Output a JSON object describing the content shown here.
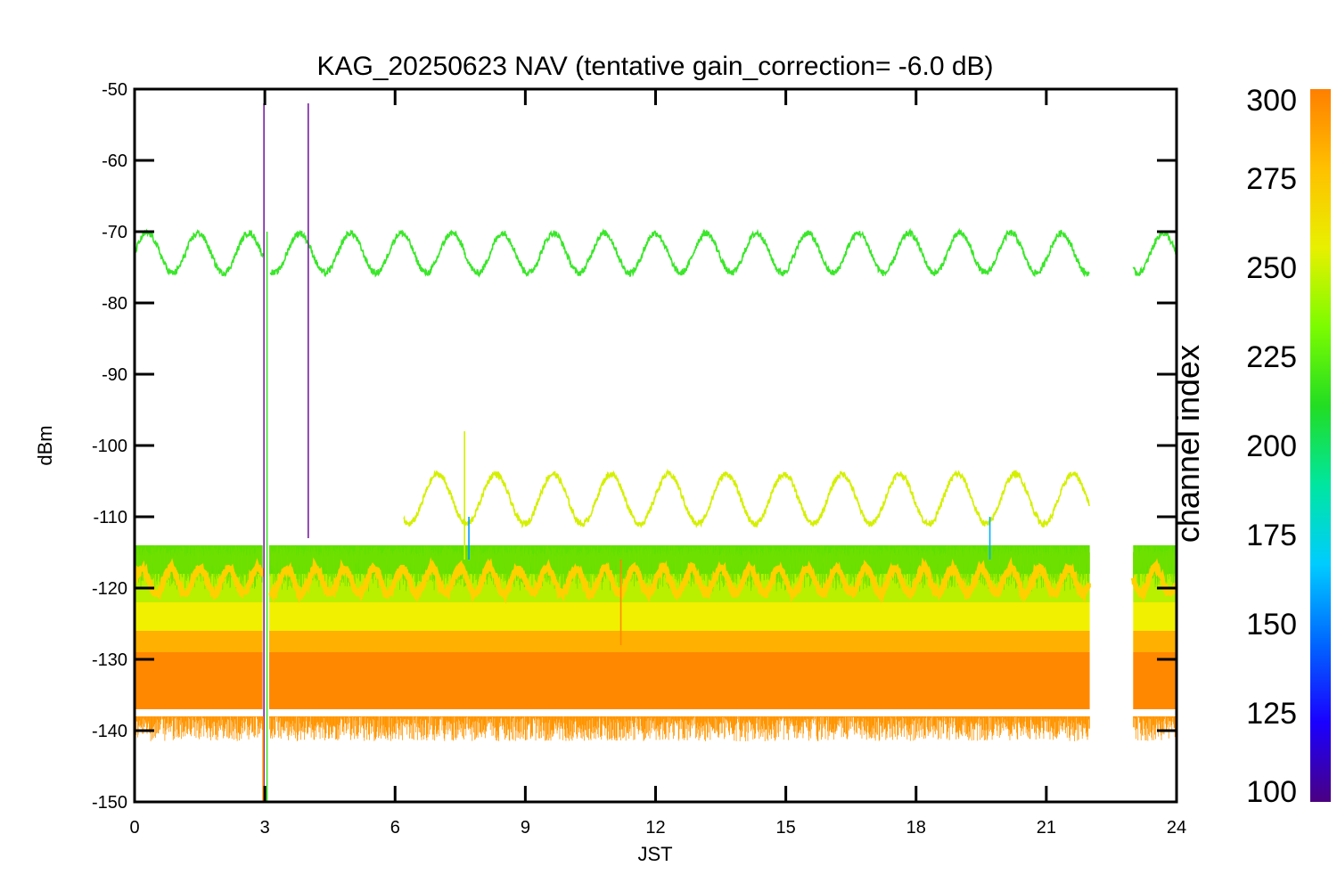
{
  "chart_data": {
    "type": "line",
    "title": "KAG_20250623 NAV (tentative gain_correction= -6.0 dB)",
    "xlabel": "JST",
    "ylabel": "dBm",
    "xlim": [
      0,
      24
    ],
    "ylim": [
      -150,
      -50
    ],
    "xticks": [
      0,
      3,
      6,
      9,
      12,
      15,
      18,
      21,
      24
    ],
    "yticks": [
      -50,
      -60,
      -70,
      -80,
      -90,
      -100,
      -110,
      -120,
      -130,
      -140,
      -150
    ],
    "grid": false,
    "data_gap": [
      22.0,
      23.0
    ],
    "colorbar": {
      "label": "channel index",
      "range": [
        100,
        300
      ],
      "ticks": [
        300,
        275,
        250,
        225,
        200,
        175,
        150,
        125,
        100
      ],
      "colors": [
        "#4b0082",
        "#1a00ff",
        "#0066ff",
        "#00ccff",
        "#00e6a0",
        "#22dd22",
        "#7cfc00",
        "#e8f000",
        "#ffc000",
        "#ff7f00"
      ]
    },
    "series": [
      {
        "color": "#3ae62a",
        "x_start": 0,
        "x_end": 24,
        "center": -73,
        "amplitude": 2.8,
        "period_hours": 1.17,
        "description_values": {
          "min": -76,
          "max": -70
        }
      },
      {
        "color": "#d4f000",
        "x_start": 6.2,
        "x_end": 22.0,
        "center": -107.5,
        "amplitude": 3.5,
        "period_hours": 1.33,
        "description_values": {
          "min": -111,
          "max": -104
        }
      },
      {
        "color": "#ffd000",
        "x_start": 0,
        "x_end": 24,
        "center": -119,
        "amplitude": 1.8,
        "period_hours": 0.667,
        "description_values": {
          "min": -121,
          "max": -117
        }
      }
    ],
    "noise_band": {
      "x_start": 0,
      "x_end": 24,
      "upper": -114,
      "lower": -138,
      "layers": [
        {
          "from": -114,
          "to": -118,
          "color": "#5fe000"
        },
        {
          "from": -118,
          "to": -122,
          "color": "#b8f000"
        },
        {
          "from": -122,
          "to": -126,
          "color": "#f0f000"
        },
        {
          "from": -126,
          "to": -129,
          "color": "#ffb000"
        },
        {
          "from": -129,
          "to": -137,
          "color": "#ff8800"
        }
      ]
    },
    "spikes": [
      {
        "x": 2.98,
        "from": -150,
        "to": -52,
        "color": "#7a1fa2"
      },
      {
        "x": 3.05,
        "from": -150,
        "to": -70,
        "color": "#3ae62a"
      },
      {
        "x": 2.96,
        "from": -150,
        "to": -138,
        "color": "#ff8800"
      },
      {
        "x": 4.0,
        "from": -113,
        "to": -52,
        "color": "#7a1fa2"
      },
      {
        "x": 7.7,
        "from": -116,
        "to": -110,
        "color": "#0099ff"
      },
      {
        "x": 7.6,
        "from": -116,
        "to": -98,
        "color": "#d4f000"
      },
      {
        "x": 11.2,
        "from": -128,
        "to": -116,
        "color": "#ff8800"
      },
      {
        "x": 19.7,
        "from": -116,
        "to": -110,
        "color": "#00b0ff"
      }
    ]
  }
}
